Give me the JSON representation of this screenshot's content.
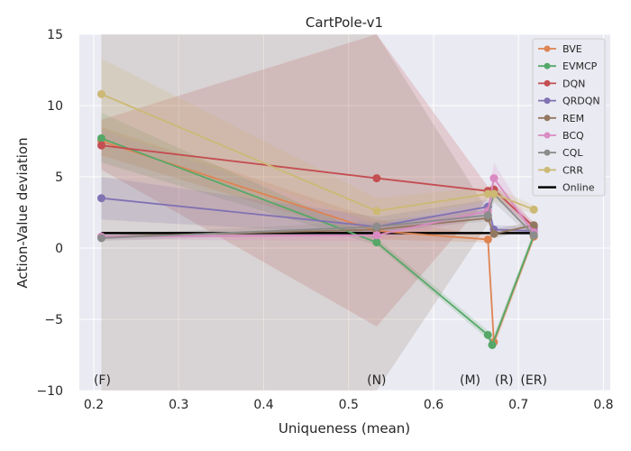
{
  "chart_data": {
    "type": "line",
    "title": "CartPole-v1",
    "xlabel": "Uniqueness (mean)",
    "ylabel": "Action-Value deviation",
    "xlim": [
      0.183,
      0.808
    ],
    "ylim": [
      -10,
      15
    ],
    "x_ticks": [
      0.2,
      0.3,
      0.4,
      0.5,
      0.6,
      0.7,
      0.8
    ],
    "x_tick_labels": [
      "0.2",
      "0.3",
      "0.4",
      "0.5",
      "0.6",
      "0.7",
      "0.8"
    ],
    "y_ticks": [
      -10,
      -5,
      0,
      5,
      10,
      15
    ],
    "y_tick_labels": [
      "−10",
      "−5",
      "0",
      "5",
      "10",
      "15"
    ],
    "grid": true,
    "legend_position": "top-right",
    "annotations": [
      {
        "text": "(F)",
        "x": 0.21
      },
      {
        "text": "(N)",
        "x": 0.533
      },
      {
        "text": "(M)",
        "x": 0.643
      },
      {
        "text": "(R)",
        "x": 0.683
      },
      {
        "text": "(ER)",
        "x": 0.718
      }
    ],
    "reference_line": {
      "name": "Online",
      "y": 1.05,
      "color": "#000000"
    },
    "series": [
      {
        "name": "BVE",
        "color": "#dd8452",
        "points": [
          [
            0.209,
            7.5
          ],
          [
            0.533,
            1.2
          ],
          [
            0.664,
            0.6
          ],
          [
            0.671,
            -6.6
          ],
          [
            0.718,
            0.8
          ]
        ],
        "upper": [
          8.5,
          2.0,
          0.9,
          -6.3,
          1.1
        ],
        "lower": [
          6.5,
          0.6,
          0.4,
          -7.0,
          0.5
        ]
      },
      {
        "name": "EVMCP",
        "color": "#55a868",
        "points": [
          [
            0.209,
            7.7
          ],
          [
            0.533,
            0.4
          ],
          [
            0.664,
            -6.1
          ],
          [
            0.669,
            -6.8
          ],
          [
            0.718,
            0.9
          ]
        ],
        "upper": [
          9.5,
          0.7,
          -5.8,
          -6.4,
          1.2
        ],
        "lower": [
          6.0,
          0.2,
          -6.4,
          -7.1,
          0.6
        ]
      },
      {
        "name": "DQN",
        "color": "#c44e52",
        "points": [
          [
            0.209,
            7.2
          ],
          [
            0.533,
            4.9
          ],
          [
            0.664,
            4.0
          ],
          [
            0.671,
            4.1
          ],
          [
            0.718,
            1.5
          ]
        ],
        "upper": [
          9.0,
          15.0,
          4.3,
          4.5,
          1.8
        ],
        "lower": [
          5.5,
          -5.5,
          3.5,
          3.7,
          1.2
        ]
      },
      {
        "name": "QRDQN",
        "color": "#8172b3",
        "points": [
          [
            0.209,
            3.5
          ],
          [
            0.533,
            1.5
          ],
          [
            0.664,
            2.9
          ],
          [
            0.671,
            1.3
          ],
          [
            0.718,
            1.2
          ]
        ],
        "upper": [
          5.0,
          2.2,
          3.4,
          1.6,
          1.5
        ],
        "lower": [
          2.0,
          0.9,
          2.4,
          1.0,
          0.9
        ]
      },
      {
        "name": "REM",
        "color": "#937860",
        "points": [
          [
            0.209,
            0.8
          ],
          [
            0.533,
            1.3
          ],
          [
            0.664,
            2.1
          ],
          [
            0.671,
            1.0
          ],
          [
            0.718,
            1.6
          ]
        ],
        "upper": [
          15.0,
          15.0,
          2.6,
          1.3,
          1.9
        ],
        "lower": [
          -10.0,
          -10.0,
          1.7,
          0.7,
          1.3
        ]
      },
      {
        "name": "BCQ",
        "color": "#da8bc3",
        "points": [
          [
            0.209,
            0.8
          ],
          [
            0.533,
            0.9
          ],
          [
            0.664,
            2.6
          ],
          [
            0.671,
            4.9
          ],
          [
            0.718,
            1.1
          ]
        ],
        "upper": [
          1.0,
          1.3,
          3.0,
          6.0,
          1.4
        ],
        "lower": [
          0.6,
          0.5,
          2.2,
          3.8,
          0.8
        ]
      },
      {
        "name": "CQL",
        "color": "#8c8c8c",
        "points": [
          [
            0.209,
            0.7
          ],
          [
            0.533,
            1.5
          ],
          [
            0.664,
            2.3
          ],
          [
            0.671,
            3.8
          ],
          [
            0.718,
            0.9
          ]
        ],
        "upper": [
          0.9,
          1.9,
          2.7,
          4.4,
          1.2
        ],
        "lower": [
          0.5,
          1.1,
          1.9,
          3.2,
          0.6
        ]
      },
      {
        "name": "CRR",
        "color": "#ccb974",
        "points": [
          [
            0.209,
            10.8
          ],
          [
            0.533,
            2.6
          ],
          [
            0.664,
            3.8
          ],
          [
            0.671,
            3.8
          ],
          [
            0.718,
            2.7
          ]
        ],
        "upper": [
          13.3,
          3.5,
          4.3,
          4.3,
          3.0
        ],
        "lower": [
          8.3,
          1.7,
          3.3,
          3.3,
          2.4
        ]
      }
    ]
  }
}
